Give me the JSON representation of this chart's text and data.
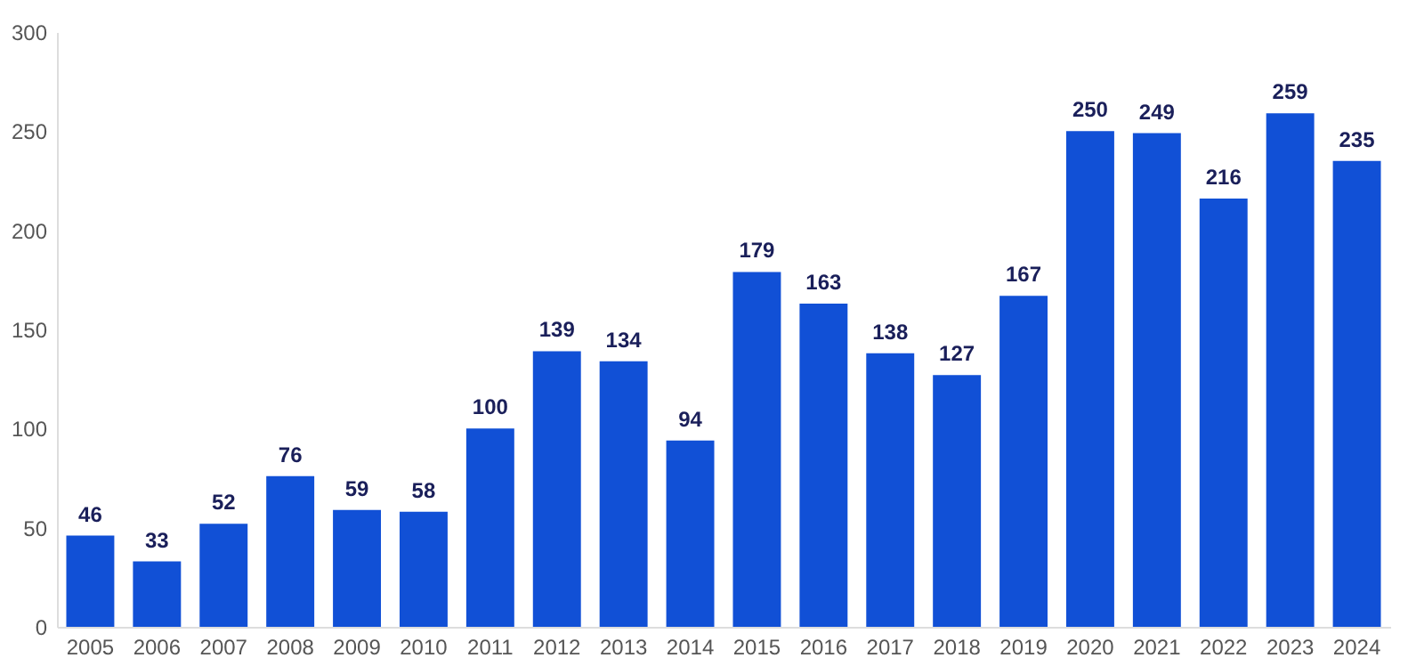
{
  "chart_data": {
    "type": "bar",
    "categories": [
      "2005",
      "2006",
      "2007",
      "2008",
      "2009",
      "2010",
      "2011",
      "2012",
      "2013",
      "2014",
      "2015",
      "2016",
      "2017",
      "2018",
      "2019",
      "2020",
      "2021",
      "2022",
      "2023",
      "2024"
    ],
    "values": [
      46,
      33,
      52,
      76,
      59,
      58,
      100,
      139,
      134,
      94,
      179,
      163,
      138,
      127,
      167,
      250,
      249,
      216,
      259,
      235
    ],
    "color": "#1150d6",
    "ylim": [
      0,
      300
    ],
    "yticks": [
      0,
      50,
      100,
      150,
      200,
      250,
      300
    ],
    "grid": false,
    "data_labels": true
  }
}
